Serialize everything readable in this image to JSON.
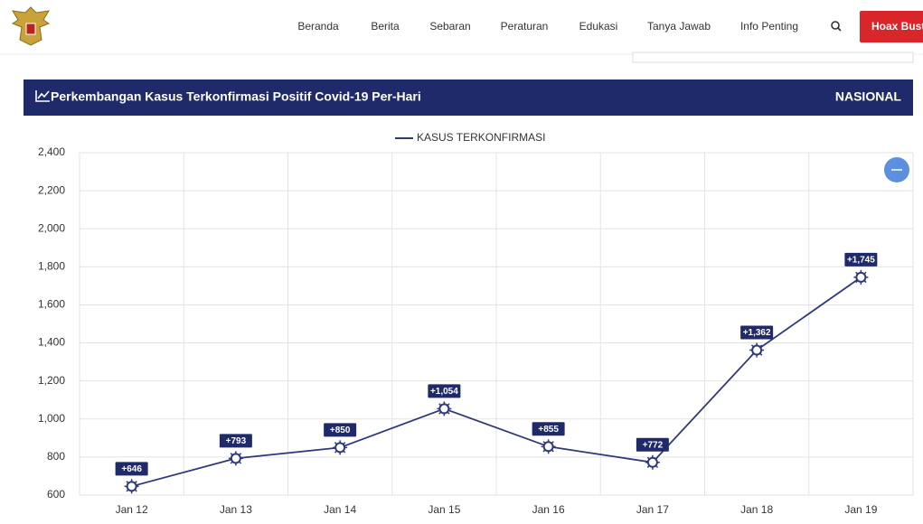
{
  "nav": {
    "items": [
      "Beranda",
      "Berita",
      "Sebaran",
      "Peraturan",
      "Edukasi",
      "Tanya Jawab",
      "Info Penting"
    ],
    "button": "Hoax Buster"
  },
  "chart_data": {
    "type": "line",
    "title": "Perkembangan Kasus Terkonfirmasi Positif Covid-19 Per-Hari",
    "region": "NASIONAL",
    "categories": [
      "Jan 12",
      "Jan 13",
      "Jan 14",
      "Jan 15",
      "Jan 16",
      "Jan 17",
      "Jan 18",
      "Jan 19"
    ],
    "series": [
      {
        "name": "KASUS TERKONFIRMASI",
        "color": "#2f3879",
        "values": [
          646,
          793,
          850,
          1054,
          855,
          772,
          1362,
          1745
        ],
        "value_labels": [
          "+646",
          "+793",
          "+850",
          "+1,054",
          "+855",
          "+772",
          "+1,362",
          "+1,745"
        ]
      }
    ],
    "ylim": [
      600,
      2400
    ],
    "yticks": [
      600,
      800,
      {
        "value": 1000,
        "label": "1,000"
      },
      {
        "value": 1200,
        "label": "1,200"
      },
      {
        "value": 1400,
        "label": "1,400"
      },
      {
        "value": 1600,
        "label": "1,600"
      },
      {
        "value": 1800,
        "label": "1,800"
      },
      {
        "value": 2000,
        "label": "2,000"
      },
      {
        "value": 2200,
        "label": "2,200"
      },
      {
        "value": 2400,
        "label": "2,400"
      }
    ],
    "grid": true,
    "legend": "top"
  }
}
